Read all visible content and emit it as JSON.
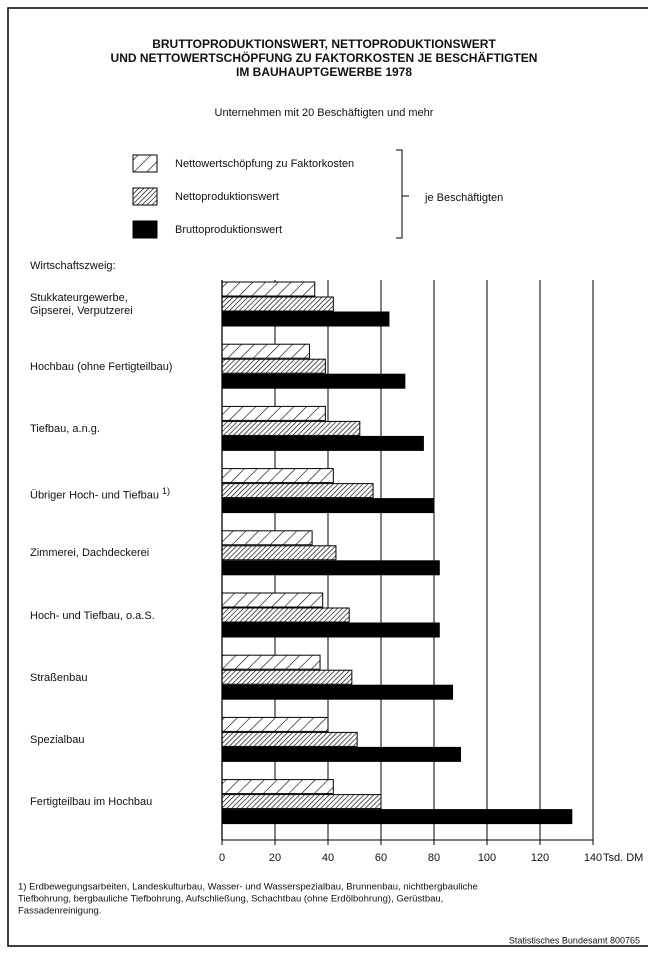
{
  "chart_data": {
    "type": "hbar",
    "title": [
      "BRUTTOPRODUKTIONSWERT, NETTOPRODUKTIONSWERT",
      "UND NETTOWERTSCHÖPFUNG ZU FAKTORKOSTEN JE BESCHÄFTIGTEN",
      "IM BAUHAUPTGEWERBE 1978"
    ],
    "subtitle": "Unternehmen mit 20 Beschäftigten und mehr",
    "legend_suffix": "je Beschäftigten",
    "category_axis_label": "Wirtschaftszweig:",
    "xlabel": "Tsd. DM",
    "categories": [
      "Stukkateurgewerbe,\n Gipserei, Verputzerei",
      "Hochbau (ohne Fertigteilbau)",
      "Tiefbau, a.n.g.",
      "Übriger Hoch- und Tiefbau",
      "Zimmerei, Dachdeckerei",
      "Hoch- und Tiefbau, o.a.S.",
      "Straßenbau",
      "Spezialbau",
      "Fertigteilbau im Hochbau"
    ],
    "footnote_marker": "1)",
    "series": [
      {
        "name": "Nettowertschöpfung zu Faktorkosten",
        "color": "#000000",
        "fill": "hatch-light",
        "values": [
          35,
          33,
          39,
          42,
          34,
          38,
          37,
          40,
          42
        ]
      },
      {
        "name": "Nettoproduktionswert",
        "color": "#000000",
        "fill": "hatch-dense",
        "values": [
          42,
          39,
          52,
          57,
          43,
          48,
          49,
          51,
          60
        ]
      },
      {
        "name": "Bruttoproduktionswert",
        "color": "#000000",
        "fill": "solid",
        "values": [
          63,
          69,
          76,
          80,
          82,
          82,
          87,
          90,
          132
        ]
      }
    ],
    "xlim": [
      0,
      140
    ],
    "xticks": [
      0,
      20,
      40,
      60,
      80,
      100,
      120,
      140
    ],
    "grid": true,
    "footnote": [
      "1) Erdbewegungsarbeiten, Landeskulturbau, Wasser- und Wasserspezialbau, Brunnenbau, nichtbergbauliche",
      "Tiefbohrung, bergbauliche Tiefbohrung, Aufschließung, Schachtbau (ohne Erdölbohrung), Gerüstbau,",
      "Fassadenreinigung."
    ],
    "source": "Statistisches Bundesamt 800765"
  }
}
